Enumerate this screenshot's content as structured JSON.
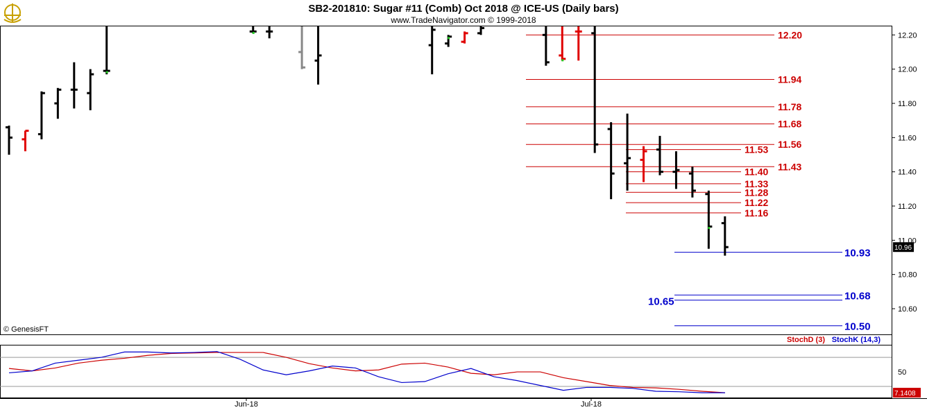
{
  "header": {
    "title": "SB2-201810:  Sugar #11 (Comb) Oct 2018 @ ICE-US  (Daily bars)",
    "subtitle": "www.TradeNavigator.com © 1999-2018",
    "copyright": "© GenesisFT",
    "logo_icon": "ship-wheel-anchor-icon"
  },
  "colors": {
    "bar": "#000000",
    "up_close_tick": "#22cc22",
    "red_bar": "#e00000",
    "gray_bar": "#888888",
    "resistance": "#cc0000",
    "support": "#0000cc",
    "stoch_k": "#0000cc",
    "stoch_d": "#cc0000"
  },
  "chart_data": [
    {
      "type": "bar",
      "subtype": "ohlc",
      "ylim": [
        10.45,
        12.25
      ],
      "yticks": [
        "12.20",
        "12.00",
        "11.80",
        "11.60",
        "11.40",
        "11.20",
        "11.00",
        "10.80",
        "10.60"
      ],
      "xticks": [
        "Jun-18",
        "Jul-18"
      ],
      "last_price": "10.96",
      "bars": [
        {
          "h": 11.67,
          "l": 11.5,
          "o": 11.66,
          "c": 11.6,
          "col": "black"
        },
        {
          "h": 11.64,
          "l": 11.52,
          "o": 11.59,
          "c": 11.64,
          "col": "red"
        },
        {
          "h": 11.87,
          "l": 11.59,
          "o": 11.62,
          "c": 11.86,
          "col": "black"
        },
        {
          "h": 11.89,
          "l": 11.71,
          "o": 11.8,
          "c": 11.88,
          "col": "black"
        },
        {
          "h": 12.04,
          "l": 11.77,
          "o": 11.88,
          "c": 11.88,
          "col": "black"
        },
        {
          "h": 12.0,
          "l": 11.76,
          "o": 11.86,
          "c": 11.97,
          "col": "black"
        },
        {
          "h": 12.25,
          "l": 11.97,
          "o": 11.99,
          "c": 11.99,
          "col": "black",
          "ct": "green"
        },
        {
          "h": 12.25,
          "l": 12.21,
          "o": 12.22,
          "c": 12.22,
          "col": "black",
          "ct": "green"
        },
        {
          "h": 12.25,
          "l": 12.18,
          "o": 12.22,
          "c": 12.22,
          "col": "black"
        },
        {
          "h": 12.25,
          "l": 12.0,
          "o": 12.1,
          "c": 12.01,
          "col": "gray"
        },
        {
          "h": 12.25,
          "l": 11.91,
          "o": 12.05,
          "c": 12.08,
          "col": "black"
        },
        {
          "h": 12.25,
          "l": 11.97,
          "o": 12.14,
          "c": 12.23,
          "col": "black"
        },
        {
          "h": 12.2,
          "l": 12.13,
          "o": 12.15,
          "c": 12.19,
          "col": "black",
          "ct": "green"
        },
        {
          "h": 12.22,
          "l": 12.15,
          "o": 12.16,
          "c": 12.21,
          "col": "red"
        },
        {
          "h": 12.25,
          "l": 12.2,
          "o": 12.21,
          "c": 12.24,
          "col": "black"
        },
        {
          "h": 12.25,
          "l": 12.02,
          "o": 12.2,
          "c": 12.04,
          "col": "black"
        },
        {
          "h": 12.25,
          "l": 12.05,
          "o": 12.08,
          "c": 12.06,
          "col": "red",
          "ct": "green"
        },
        {
          "h": 12.25,
          "l": 12.05,
          "o": 12.22,
          "c": 12.22,
          "col": "red"
        },
        {
          "h": 12.25,
          "l": 11.51,
          "o": 12.21,
          "c": 11.56,
          "col": "black"
        },
        {
          "h": 11.69,
          "l": 11.24,
          "o": 11.65,
          "c": 11.39,
          "col": "black"
        },
        {
          "h": 11.74,
          "l": 11.29,
          "o": 11.45,
          "c": 11.48,
          "col": "black"
        },
        {
          "h": 11.55,
          "l": 11.34,
          "o": 11.47,
          "c": 11.52,
          "col": "red"
        },
        {
          "h": 11.61,
          "l": 11.38,
          "o": 11.53,
          "c": 11.4,
          "col": "black"
        },
        {
          "h": 11.52,
          "l": 11.3,
          "o": 11.4,
          "c": 11.41,
          "col": "black"
        },
        {
          "h": 11.43,
          "l": 11.25,
          "o": 11.39,
          "c": 11.29,
          "col": "black"
        },
        {
          "h": 11.29,
          "l": 10.95,
          "o": 11.27,
          "c": 11.08,
          "col": "black",
          "ct": "green"
        },
        {
          "h": 11.14,
          "l": 10.91,
          "o": 11.1,
          "c": 10.96,
          "col": "black"
        }
      ],
      "resistance_levels": [
        {
          "value": 12.2,
          "label": "12.20",
          "label_x": "right"
        },
        {
          "value": 11.94,
          "label": "11.94",
          "label_x": "right"
        },
        {
          "value": 11.78,
          "label": "11.78",
          "label_x": "right"
        },
        {
          "value": 11.68,
          "label": "11.68",
          "label_x": "right"
        },
        {
          "value": 11.56,
          "label": "11.56",
          "label_x": "right"
        },
        {
          "value": 11.53,
          "label": "11.53",
          "label_x": "left"
        },
        {
          "value": 11.43,
          "label": "11.43",
          "label_x": "right"
        },
        {
          "value": 11.4,
          "label": "11.40",
          "label_x": "left"
        },
        {
          "value": 11.33,
          "label": "11.33",
          "label_x": "left"
        },
        {
          "value": 11.28,
          "label": "11.28",
          "label_x": "left"
        },
        {
          "value": 11.22,
          "label": "11.22",
          "label_x": "left"
        },
        {
          "value": 11.16,
          "label": "11.16",
          "label_x": "left"
        }
      ],
      "support_levels": [
        {
          "value": 10.93,
          "label": "10.93"
        },
        {
          "value": 10.68,
          "label": "10.68"
        },
        {
          "value": 10.65,
          "label": "10.65"
        },
        {
          "value": 10.5,
          "label": "10.50"
        }
      ]
    },
    {
      "type": "line",
      "title": "StochD (3)   StochK (14,3)",
      "ylim": [
        0,
        100
      ],
      "yticks": [
        "50"
      ],
      "last_value": "7.1408",
      "series": [
        {
          "name": "StochD (3)",
          "color": "#cc0000",
          "values": [
            57,
            52,
            58,
            68,
            74,
            78,
            84,
            88,
            89,
            90,
            90,
            90,
            80,
            67,
            58,
            52,
            54,
            66,
            68,
            60,
            47,
            44,
            50,
            50,
            38,
            30,
            22,
            18,
            17,
            14,
            10,
            7
          ]
        },
        {
          "name": "StochK (14,3)",
          "color": "#0000cc",
          "values": [
            48,
            52,
            68,
            74,
            80,
            91,
            91,
            89,
            90,
            92,
            76,
            54,
            44,
            52,
            62,
            58,
            40,
            28,
            30,
            46,
            57,
            40,
            32,
            22,
            12,
            18,
            18,
            16,
            10,
            9,
            7,
            7
          ]
        }
      ]
    }
  ],
  "legend": {
    "stoch_d": "StochD (3)",
    "stoch_k": "StochK (14,3)"
  }
}
